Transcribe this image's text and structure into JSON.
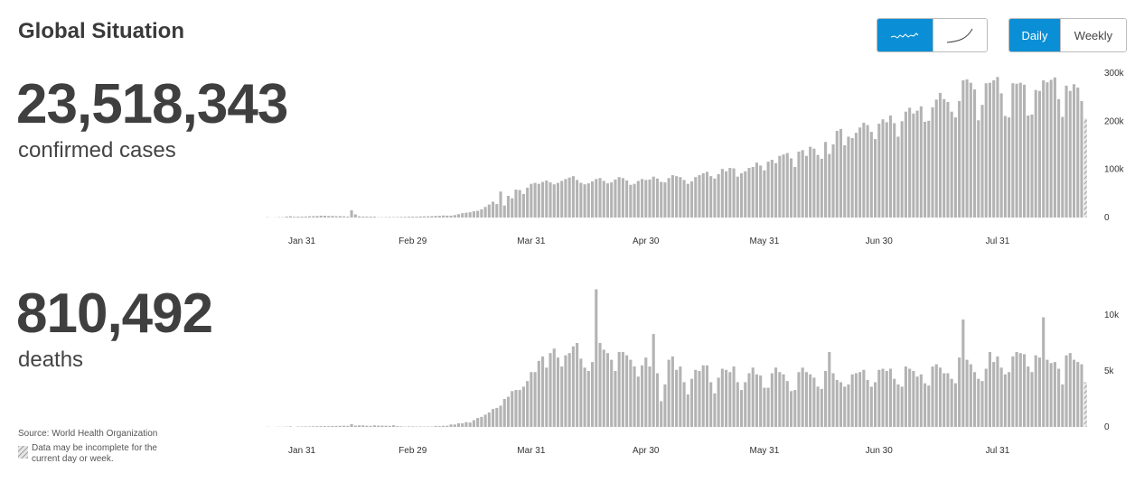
{
  "header": {
    "title": "Global Situation"
  },
  "controls": {
    "period": [
      "Daily",
      "Weekly"
    ]
  },
  "stats": [
    {
      "value": "23,518,343",
      "label": "confirmed cases"
    },
    {
      "value": "810,492",
      "label": "deaths"
    }
  ],
  "footer": {
    "source": "Source: World Health Organization",
    "note": "Data may be incomplete for the current day or week."
  },
  "chart_data": [
    {
      "type": "bar",
      "color": "#b3b3b3",
      "last_incomplete": true,
      "ylim": [
        0,
        300000
      ],
      "yticks": [
        0,
        {
          "value": 100000,
          "label": "100k"
        },
        {
          "value": 200000,
          "label": "200k"
        },
        {
          "value": 300000,
          "label": "300k"
        }
      ],
      "categories": [
        null,
        null,
        null,
        null,
        null,
        null,
        null,
        null,
        null,
        "Jan 31",
        null,
        null,
        null,
        null,
        null,
        null,
        null,
        null,
        null,
        null,
        null,
        null,
        null,
        null,
        null,
        null,
        null,
        null,
        null,
        null,
        null,
        null,
        null,
        null,
        null,
        null,
        null,
        null,
        "Feb 29",
        null,
        null,
        null,
        null,
        null,
        null,
        null,
        null,
        null,
        null,
        null,
        null,
        null,
        null,
        null,
        null,
        null,
        null,
        null,
        null,
        null,
        null,
        null,
        null,
        null,
        null,
        null,
        null,
        null,
        null,
        "Mar 31",
        null,
        null,
        null,
        null,
        null,
        null,
        null,
        null,
        null,
        null,
        null,
        null,
        null,
        null,
        null,
        null,
        null,
        null,
        null,
        null,
        null,
        null,
        null,
        null,
        null,
        null,
        null,
        null,
        null,
        "Apr 30",
        null,
        null,
        null,
        null,
        null,
        null,
        null,
        null,
        null,
        null,
        null,
        null,
        null,
        null,
        null,
        null,
        null,
        null,
        null,
        null,
        null,
        null,
        null,
        null,
        null,
        null,
        null,
        null,
        null,
        null,
        "May 31",
        null,
        null,
        null,
        null,
        null,
        null,
        null,
        null,
        null,
        null,
        null,
        null,
        null,
        null,
        null,
        null,
        null,
        null,
        null,
        null,
        null,
        null,
        null,
        null,
        null,
        null,
        null,
        null,
        null,
        "Jun 30",
        null,
        null,
        null,
        null,
        null,
        null,
        null,
        null,
        null,
        null,
        null,
        null,
        null,
        null,
        null,
        null,
        null,
        null,
        null,
        null,
        null,
        null,
        null,
        null,
        null,
        null,
        null,
        null,
        null,
        null,
        "Jul 31",
        null,
        null,
        null,
        null,
        null,
        null,
        null,
        null,
        null,
        null,
        null,
        null,
        null,
        null,
        null,
        null,
        null,
        null,
        null,
        null,
        null,
        null,
        null
      ],
      "values": [
        600,
        100,
        300,
        700,
        700,
        2000,
        2700,
        1700,
        2000,
        2000,
        2100,
        2600,
        2800,
        3200,
        3900,
        3700,
        3200,
        3400,
        2700,
        3000,
        2500,
        2000,
        15100,
        6500,
        2600,
        2100,
        2000,
        1900,
        1800,
        600,
        600,
        900,
        1000,
        900,
        1000,
        1300,
        1500,
        1800,
        1900,
        1800,
        2300,
        2500,
        2600,
        2900,
        3400,
        3600,
        4300,
        4000,
        3900,
        5100,
        7000,
        9000,
        10000,
        11000,
        13000,
        14000,
        17000,
        22000,
        27000,
        33000,
        28000,
        54000,
        25000,
        45000,
        40000,
        58000,
        57000,
        49000,
        62000,
        70000,
        72000,
        70000,
        74000,
        77000,
        73000,
        69000,
        72000,
        76000,
        80000,
        83000,
        86000,
        78000,
        72000,
        69000,
        71000,
        75000,
        80000,
        82000,
        76000,
        71000,
        73000,
        79000,
        84000,
        82000,
        77000,
        68000,
        70000,
        76000,
        80000,
        78000,
        79000,
        85000,
        81000,
        74000,
        73000,
        82000,
        88000,
        86000,
        84000,
        78000,
        70000,
        75000,
        84000,
        88000,
        92000,
        95000,
        86000,
        81000,
        90000,
        101000,
        96000,
        103000,
        102000,
        85000,
        92000,
        96000,
        103000,
        105000,
        114000,
        108000,
        98000,
        116000,
        120000,
        113000,
        128000,
        131000,
        134000,
        123000,
        105000,
        137000,
        140000,
        128000,
        147000,
        143000,
        130000,
        122000,
        157000,
        132000,
        152000,
        180000,
        184000,
        150000,
        168000,
        165000,
        176000,
        187000,
        197000,
        192000,
        178000,
        163000,
        195000,
        204000,
        198000,
        212000,
        196000,
        168000,
        200000,
        220000,
        228000,
        216000,
        222000,
        231000,
        199000,
        201000,
        229000,
        245000,
        259000,
        246000,
        240000,
        220000,
        208000,
        242000,
        285000,
        287000,
        280000,
        266000,
        202000,
        234000,
        279000,
        280000,
        285000,
        292000,
        258000,
        211000,
        208000,
        279000,
        278000,
        280000,
        276000,
        212000,
        214000,
        265000,
        263000,
        285000,
        281000,
        286000,
        291000,
        246000,
        209000,
        274000,
        263000,
        277000,
        270000,
        242000,
        206000
      ]
    },
    {
      "type": "bar",
      "color": "#b3b3b3",
      "last_incomplete": true,
      "ylim": [
        0,
        12500
      ],
      "yticks": [
        0,
        {
          "value": 5000,
          "label": "5k"
        },
        {
          "value": 10000,
          "label": "10k"
        }
      ],
      "categories": [
        null,
        null,
        null,
        null,
        null,
        null,
        null,
        null,
        null,
        "Jan 31",
        null,
        null,
        null,
        null,
        null,
        null,
        null,
        null,
        null,
        null,
        null,
        null,
        null,
        null,
        null,
        null,
        null,
        null,
        null,
        null,
        null,
        null,
        null,
        null,
        null,
        null,
        null,
        null,
        "Feb 29",
        null,
        null,
        null,
        null,
        null,
        null,
        null,
        null,
        null,
        null,
        null,
        null,
        null,
        null,
        null,
        null,
        null,
        null,
        null,
        null,
        null,
        null,
        null,
        null,
        null,
        null,
        null,
        null,
        null,
        null,
        "Mar 31",
        null,
        null,
        null,
        null,
        null,
        null,
        null,
        null,
        null,
        null,
        null,
        null,
        null,
        null,
        null,
        null,
        null,
        null,
        null,
        null,
        null,
        null,
        null,
        null,
        null,
        null,
        null,
        null,
        null,
        "Apr 30",
        null,
        null,
        null,
        null,
        null,
        null,
        null,
        null,
        null,
        null,
        null,
        null,
        null,
        null,
        null,
        null,
        null,
        null,
        null,
        null,
        null,
        null,
        null,
        null,
        null,
        null,
        null,
        null,
        null,
        null,
        "May 31",
        null,
        null,
        null,
        null,
        null,
        null,
        null,
        null,
        null,
        null,
        null,
        null,
        null,
        null,
        null,
        null,
        null,
        null,
        null,
        null,
        null,
        null,
        null,
        null,
        null,
        null,
        null,
        null,
        null,
        "Jun 30",
        null,
        null,
        null,
        null,
        null,
        null,
        null,
        null,
        null,
        null,
        null,
        null,
        null,
        null,
        null,
        null,
        null,
        null,
        null,
        null,
        null,
        null,
        null,
        null,
        null,
        null,
        null,
        null,
        null,
        null,
        "Jul 31",
        null,
        null,
        null,
        null,
        null,
        null,
        null,
        null,
        null,
        null,
        null,
        null,
        null,
        null,
        null,
        null,
        null,
        null,
        null,
        null,
        null,
        null,
        null
      ],
      "values": [
        17,
        1,
        8,
        16,
        14,
        26,
        49,
        2,
        38,
        42,
        46,
        45,
        57,
        64,
        66,
        73,
        73,
        86,
        89,
        97,
        108,
        97,
        254,
        121,
        143,
        142,
        106,
        98,
        139,
        115,
        118,
        109,
        97,
        150,
        71,
        52,
        29,
        44,
        47,
        35,
        42,
        31,
        38,
        31,
        80,
        70,
        100,
        105,
        220,
        220,
        330,
        330,
        430,
        390,
        600,
        800,
        900,
        1100,
        1300,
        1600,
        1700,
        1900,
        2500,
        2700,
        3200,
        3300,
        3300,
        3600,
        4100,
        4900,
        4900,
        5900,
        6300,
        5300,
        6600,
        7000,
        6200,
        5400,
        6400,
        6600,
        7200,
        7500,
        6100,
        5300,
        5000,
        5800,
        12300,
        7500,
        6900,
        6600,
        6000,
        5000,
        6700,
        6700,
        6400,
        6000,
        5400,
        4500,
        5500,
        6200,
        5400,
        8300,
        4800,
        2300,
        3800,
        6000,
        6300,
        5100,
        5400,
        4000,
        2900,
        4300,
        5100,
        5000,
        5500,
        5500,
        4000,
        3000,
        4400,
        5200,
        5100,
        4900,
        5400,
        4000,
        3300,
        4000,
        4800,
        5300,
        4700,
        4600,
        3500,
        3500,
        4800,
        5300,
        4900,
        4700,
        4100,
        3200,
        3300,
        4900,
        5300,
        4900,
        4700,
        4400,
        3600,
        3400,
        5000,
        6700,
        4800,
        4200,
        4000,
        3600,
        3800,
        4700,
        4800,
        4900,
        5100,
        4200,
        3600,
        4000,
        5100,
        5200,
        5000,
        5200,
        4300,
        3800,
        3600,
        5400,
        5200,
        5000,
        4500,
        4700,
        3900,
        3700,
        5400,
        5600,
        5300,
        4800,
        4800,
        4300,
        3900,
        6200,
        9600,
        6000,
        5600,
        4900,
        4300,
        4100,
        5200,
        6700,
        5800,
        6300,
        5300,
        4700,
        4900,
        6300,
        6700,
        6600,
        6500,
        5400,
        4900,
        6400,
        6200,
        9800,
        6000,
        5700,
        5800,
        5200,
        3800,
        6400,
        6600,
        6000,
        5800,
        5600,
        4000
      ]
    }
  ]
}
